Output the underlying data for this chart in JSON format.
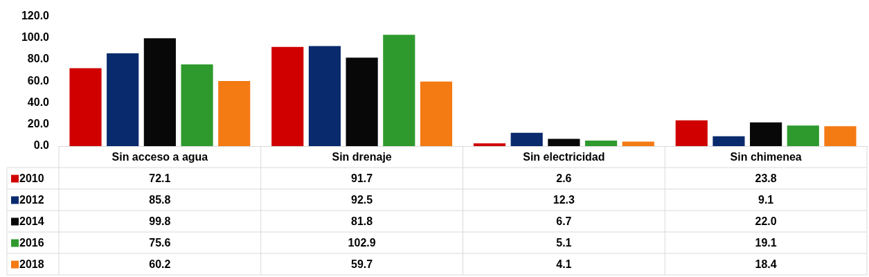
{
  "chart_data": {
    "type": "bar",
    "categories": [
      "Sin acceso a agua",
      "Sin drenaje",
      "Sin electricidad",
      "Sin chimenea"
    ],
    "series": [
      {
        "name": "2010",
        "color": "#d00000",
        "values": [
          72.1,
          91.7,
          2.6,
          23.8
        ],
        "value_labels": [
          "72.1",
          "91.7",
          "2.6",
          "23.8"
        ]
      },
      {
        "name": "2012",
        "color": "#0a2a6e",
        "values": [
          85.8,
          92.5,
          12.3,
          9.1
        ],
        "value_labels": [
          "85.8",
          "92.5",
          "12.3",
          "9.1"
        ]
      },
      {
        "name": "2014",
        "color": "#080808",
        "values": [
          99.8,
          81.8,
          6.7,
          22.0
        ],
        "value_labels": [
          "99.8",
          "81.8",
          "6.7",
          "22.0"
        ]
      },
      {
        "name": "2016",
        "color": "#2e9a2e",
        "values": [
          75.6,
          102.9,
          5.1,
          19.1
        ],
        "value_labels": [
          "75.6",
          "102.9",
          "5.1",
          "19.1"
        ]
      },
      {
        "name": "2018",
        "color": "#f47a14",
        "values": [
          60.2,
          59.7,
          4.1,
          18.4
        ],
        "value_labels": [
          "60.2",
          "59.7",
          "4.1",
          "18.4"
        ]
      }
    ],
    "ylim": [
      0,
      120
    ],
    "yticks": [
      {
        "value": 0,
        "label": "0.0"
      },
      {
        "value": 20,
        "label": "20.0"
      },
      {
        "value": 40,
        "label": "40.0"
      },
      {
        "value": 60,
        "label": "60.0"
      },
      {
        "value": 80,
        "label": "80.0"
      },
      {
        "value": 100,
        "label": "100.0"
      },
      {
        "value": 120,
        "label": "120.0"
      }
    ],
    "grid": false,
    "legend": "bottom left"
  }
}
